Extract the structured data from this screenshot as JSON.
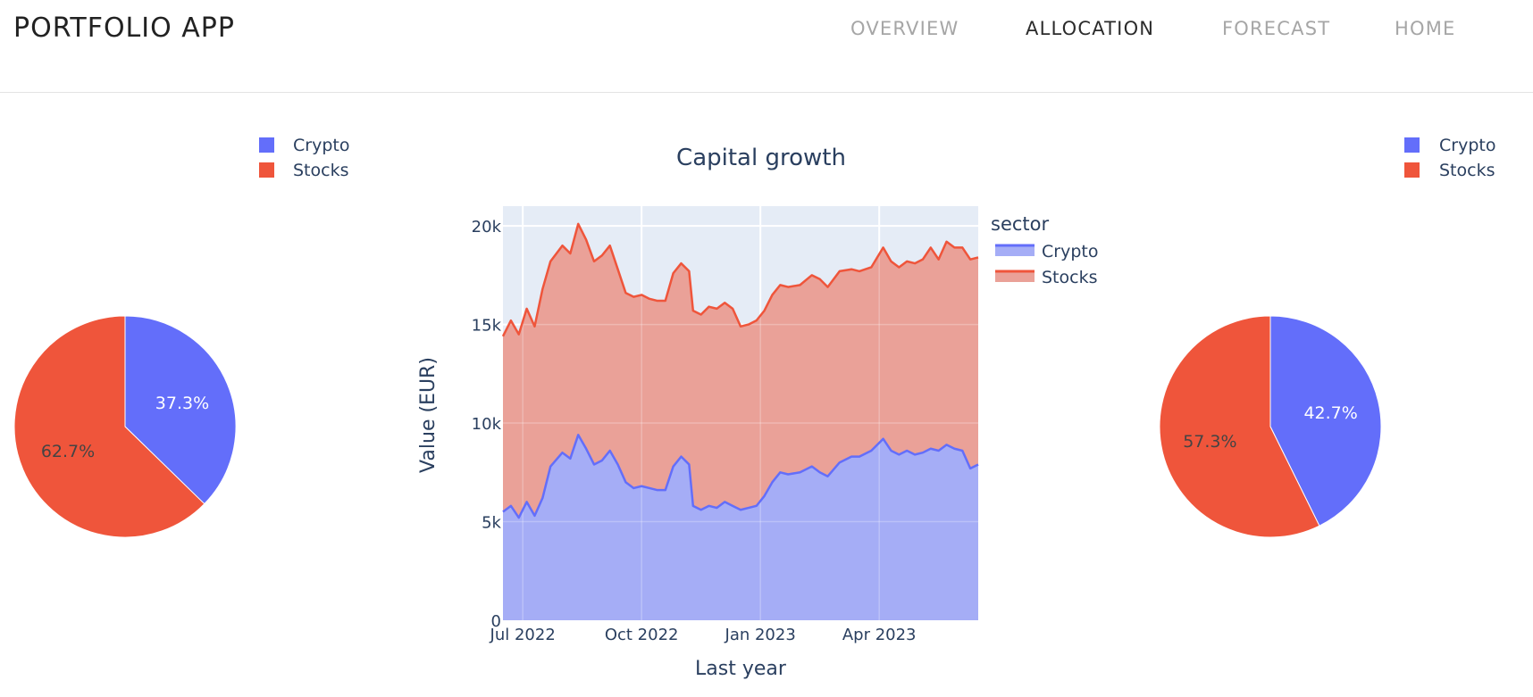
{
  "app": {
    "brand": "PORTFOLIO APP",
    "nav": [
      {
        "label": "OVERVIEW",
        "active": false
      },
      {
        "label": "ALLOCATION",
        "active": true
      },
      {
        "label": "FORECAST",
        "active": false
      },
      {
        "label": "HOME",
        "active": false
      }
    ]
  },
  "colors": {
    "crypto": "#636efa",
    "stocks": "#ef553b",
    "crypto_fill": "#a5adf6",
    "stocks_fill": "#eaa198",
    "plot_bg": "#e5ecf6",
    "text": "#2a3f5f"
  },
  "chart_data": [
    {
      "type": "pie",
      "labels": [
        "Crypto",
        "Stocks"
      ],
      "values": [
        37.3,
        62.7
      ],
      "text": [
        "37.3%",
        "62.7%"
      ]
    },
    {
      "type": "area",
      "title": "Capital growth",
      "xlabel": "Last year",
      "ylabel": "Value (EUR)",
      "legend_title": "sector",
      "legend": [
        "Crypto",
        "Stocks"
      ],
      "ylim": [
        0,
        21000
      ],
      "yticks": [
        0,
        5000,
        10000,
        15000,
        20000
      ],
      "ytick_labels": [
        "0",
        "5k",
        "10k",
        "15k",
        "20k"
      ],
      "xticks": [
        0.5,
        3.5,
        6.5,
        9.5
      ],
      "xtick_labels": [
        "Jul 2022",
        "Oct 2022",
        "Jan 2023",
        "Apr 2023"
      ],
      "xlim": [
        0,
        12
      ],
      "x": [
        0,
        0.2,
        0.4,
        0.6,
        0.8,
        1.0,
        1.2,
        1.5,
        1.7,
        1.9,
        2.1,
        2.3,
        2.5,
        2.7,
        2.9,
        3.1,
        3.3,
        3.5,
        3.7,
        3.9,
        4.1,
        4.3,
        4.5,
        4.7,
        4.8,
        5.0,
        5.2,
        5.4,
        5.6,
        5.8,
        6.0,
        6.2,
        6.4,
        6.6,
        6.8,
        7.0,
        7.2,
        7.5,
        7.8,
        8.0,
        8.2,
        8.5,
        8.8,
        9.0,
        9.3,
        9.6,
        9.8,
        10.0,
        10.2,
        10.4,
        10.6,
        10.8,
        11.0,
        11.2,
        11.4,
        11.6,
        11.8,
        12.0
      ],
      "series": [
        {
          "name": "Crypto",
          "values": [
            5500,
            5800,
            5200,
            6000,
            5300,
            6200,
            7800,
            8500,
            8200,
            9400,
            8700,
            7900,
            8100,
            8600,
            7900,
            7000,
            6700,
            6800,
            6700,
            6600,
            6600,
            7800,
            8300,
            7900,
            5800,
            5600,
            5800,
            5700,
            6000,
            5800,
            5600,
            5700,
            5800,
            6300,
            7000,
            7500,
            7400,
            7500,
            7800,
            7500,
            7300,
            8000,
            8300,
            8300,
            8600,
            9200,
            8600,
            8400,
            8600,
            8400,
            8500,
            8700,
            8600,
            8900,
            8700,
            8600,
            7700,
            7900
          ]
        },
        {
          "name": "Stocks",
          "values": [
            14400,
            15200,
            14500,
            15800,
            14900,
            16800,
            18200,
            19000,
            18600,
            20100,
            19300,
            18200,
            18500,
            19000,
            17800,
            16600,
            16400,
            16500,
            16300,
            16200,
            16200,
            17600,
            18100,
            17700,
            15700,
            15500,
            15900,
            15800,
            16100,
            15800,
            14900,
            15000,
            15200,
            15700,
            16500,
            17000,
            16900,
            17000,
            17500,
            17300,
            16900,
            17700,
            17800,
            17700,
            17900,
            18900,
            18200,
            17900,
            18200,
            18100,
            18300,
            18900,
            18300,
            19200,
            18900,
            18900,
            18300,
            18400
          ]
        }
      ]
    },
    {
      "type": "pie",
      "labels": [
        "Crypto",
        "Stocks"
      ],
      "values": [
        42.7,
        57.3
      ],
      "text": [
        "42.7%",
        "57.3%"
      ]
    }
  ]
}
